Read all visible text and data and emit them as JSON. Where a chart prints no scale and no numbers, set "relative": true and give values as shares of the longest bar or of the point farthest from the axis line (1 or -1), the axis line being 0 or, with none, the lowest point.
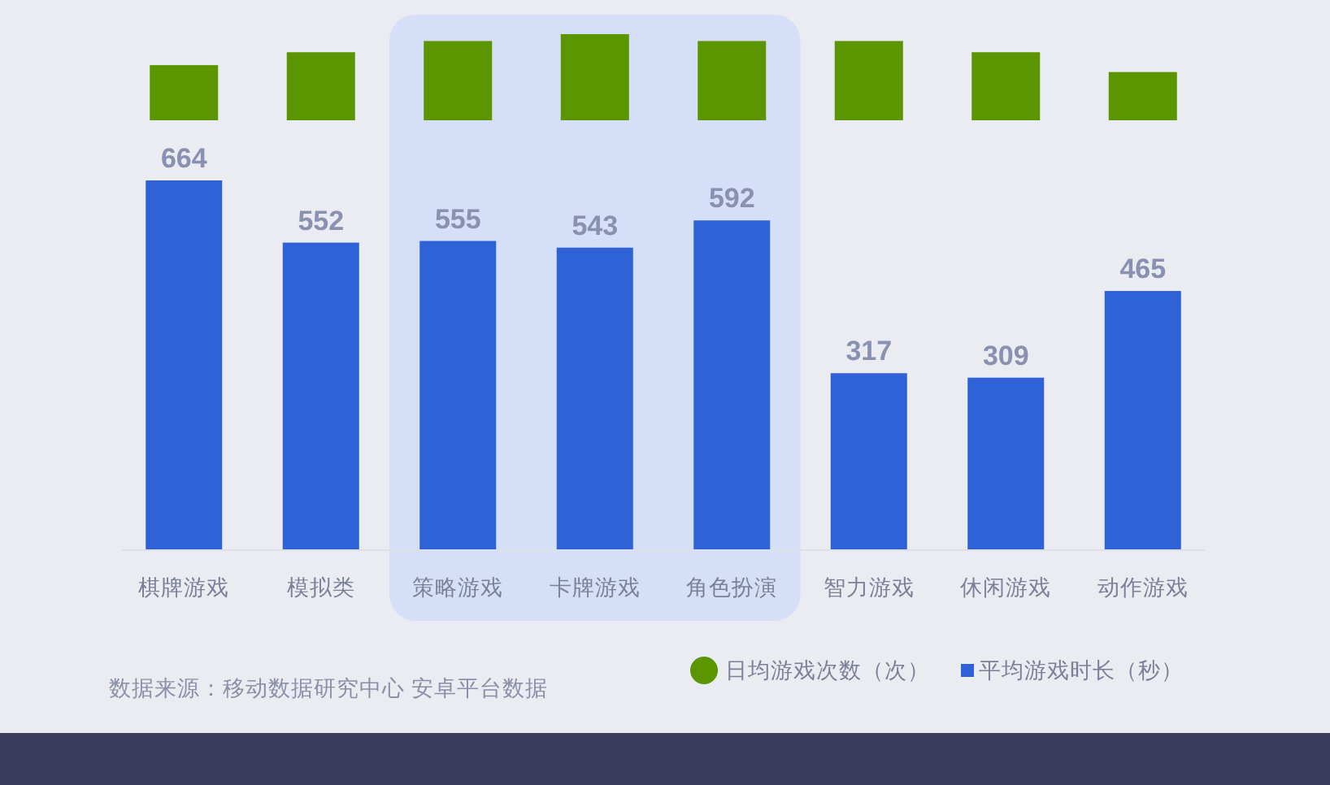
{
  "chart_data": [
    {
      "type": "bar",
      "categories": [
        null,
        null,
        null,
        null,
        null,
        null,
        null,
        null
      ],
      "relative": true,
      "series": [
        {
          "name": "日均游戏次数（次）",
          "color": "#5b9500",
          "values": [
            0.64,
            0.79,
            0.92,
            1,
            0.92,
            0.92,
            0.79,
            0.56
          ]
        }
      ],
      "legend": "bottom right"
    },
    {
      "type": "bar",
      "categories": [
        "棋牌游戏",
        "模拟类",
        "策略游戏",
        "卡牌游戏",
        "角色扮演",
        "智力游戏",
        "休闲游戏",
        "动作游戏"
      ],
      "series": [
        {
          "name": "平均游戏时长（秒）",
          "color": "#2f62d6",
          "values": [
            664,
            552,
            555,
            543,
            592,
            317,
            309,
            465
          ],
          "value_labels": [
            "664",
            "552",
            "555",
            "543",
            "592",
            "317",
            "309",
            "465"
          ]
        }
      ],
      "bands": [
        {
          "axis": "x",
          "from": "策略游戏",
          "to": "角色扮演",
          "color": "#d5e0f8"
        }
      ],
      "legend": "bottom right",
      "annotations": [
        "数据来源：移动数据研究中心 安卓平台数据"
      ]
    }
  ]
}
